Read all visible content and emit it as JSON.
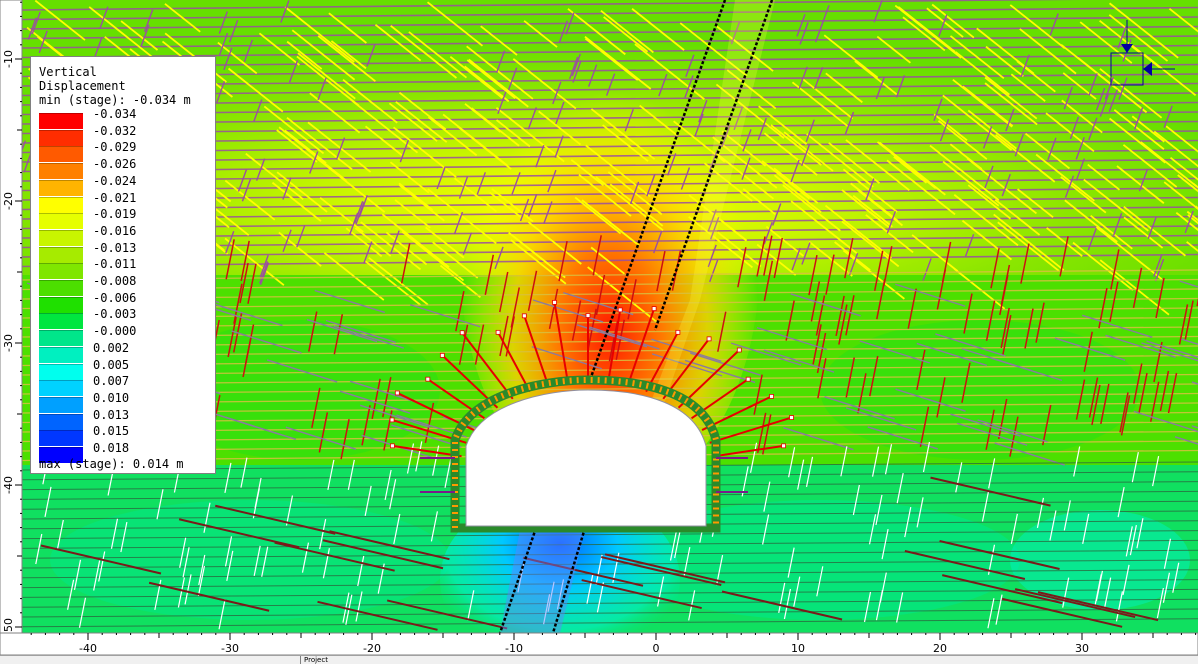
{
  "legend": {
    "title_line1": "Vertical",
    "title_line2": "Displacement",
    "min_text": "min (stage): -0.034 m",
    "max_text": "max (stage): 0.014 m",
    "entries": [
      {
        "label": "-0.034",
        "color": "#ff0000"
      },
      {
        "label": "-0.032",
        "color": "#ff2d00"
      },
      {
        "label": "-0.029",
        "color": "#ff5a00"
      },
      {
        "label": "-0.026",
        "color": "#ff8000"
      },
      {
        "label": "-0.024",
        "color": "#ffb400"
      },
      {
        "label": "-0.021",
        "color": "#ffff00"
      },
      {
        "label": "-0.019",
        "color": "#e6ff00"
      },
      {
        "label": "-0.016",
        "color": "#c8f500"
      },
      {
        "label": "-0.013",
        "color": "#a6eb00"
      },
      {
        "label": "-0.011",
        "color": "#7fe600"
      },
      {
        "label": "-0.008",
        "color": "#4cdf00"
      },
      {
        "label": "-0.006",
        "color": "#1fe000"
      },
      {
        "label": "-0.003",
        "color": "#00e640"
      },
      {
        "label": "-0.000",
        "color": "#00e68a"
      },
      {
        "label": "0.002",
        "color": "#00f0c0"
      },
      {
        "label": "0.005",
        "color": "#00ffee"
      },
      {
        "label": "0.007",
        "color": "#00d2ff"
      },
      {
        "label": "0.010",
        "color": "#00a0ff"
      },
      {
        "label": "0.013",
        "color": "#0064ff"
      },
      {
        "label": "0.015",
        "color": "#0037ff"
      },
      {
        "label": "0.018",
        "color": "#0000ff"
      }
    ]
  },
  "axes": {
    "x_ticks": [
      "-40",
      "-30",
      "-20",
      "-10",
      "0",
      "10",
      "20",
      "30"
    ],
    "x_values": [
      -40,
      -30,
      -20,
      -10,
      0,
      10,
      20,
      30
    ],
    "y_ticks": [
      "-10",
      "-20",
      "-30",
      "-40",
      "-50"
    ],
    "y_values": [
      -10,
      -20,
      -30,
      -40,
      -50
    ]
  },
  "statusbar": {
    "tab_label": "Project"
  },
  "colors": {
    "joint_yellow": "#ffff00",
    "joint_purple": "#9b4fa0",
    "joint_red": "#cc1010",
    "joint_white": "#ffffff",
    "joint_darkred": "#7a1a1a",
    "bolt_red": "#e60000",
    "liner_green": "#2a8a2a",
    "fault_black": "#000000",
    "restraint_blue": "#0000a0"
  }
}
